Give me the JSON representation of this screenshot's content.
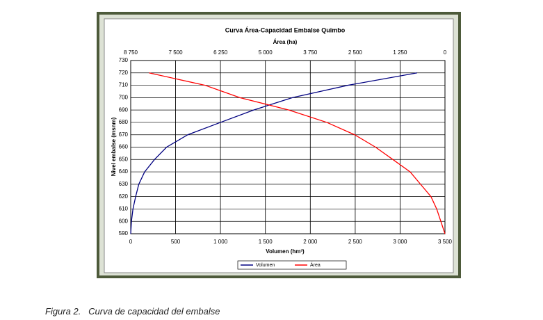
{
  "chart_data": {
    "type": "line",
    "title": "Curva Área-Capacidad Embalse Quimbo",
    "x_label": "Volumen (hm³)",
    "x2_label": "Área (ha)",
    "y_label": "Nivel embalse (msnm)",
    "xlim": [
      0,
      3500
    ],
    "xticks": [
      0,
      500,
      {
        "value": 1000,
        "label": "1 000"
      },
      {
        "value": 1500,
        "label": "1 500"
      },
      {
        "value": 2000,
        "label": "2 000"
      },
      {
        "value": 2500,
        "label": "2 500"
      },
      {
        "value": 3000,
        "label": "3 000"
      },
      {
        "value": 3500,
        "label": "3 500"
      }
    ],
    "x2lim": [
      8750,
      0
    ],
    "x2ticks": [
      {
        "value": 8750,
        "label": "8 750"
      },
      {
        "value": 7500,
        "label": "7 500"
      },
      {
        "value": 6250,
        "label": "6 250"
      },
      {
        "value": 5000,
        "label": "5 000"
      },
      {
        "value": 3750,
        "label": "3 750"
      },
      {
        "value": 2500,
        "label": "2 500"
      },
      {
        "value": 1250,
        "label": "1 250"
      },
      0
    ],
    "ylim": [
      590,
      730
    ],
    "yticks": [
      590,
      600,
      610,
      620,
      630,
      640,
      650,
      660,
      670,
      680,
      690,
      700,
      710,
      720,
      730
    ],
    "grid": true,
    "legend": "bottom",
    "series": [
      {
        "name": "Volumen",
        "color": "#000080",
        "x": [
          0,
          8,
          25,
          55,
          90,
          155,
          265,
          400,
          635,
          1000,
          1370,
          1800,
          2420,
          3190
        ],
        "values": [
          590,
          600,
          610,
          620,
          630,
          640,
          650,
          660,
          670,
          680,
          690,
          700,
          710,
          720
        ]
      },
      {
        "name": "Área",
        "color": "#ff0000",
        "axis": "x2",
        "x": [
          0,
          115,
          230,
          390,
          680,
          970,
          1450,
          1935,
          2515,
          3290,
          4350,
          5710,
          6680,
          8240
        ],
        "values": [
          590,
          600,
          610,
          620,
          630,
          640,
          650,
          660,
          670,
          680,
          690,
          700,
          710,
          720
        ]
      }
    ]
  },
  "caption": "Figura 2.   Curva de capacidad del embalse"
}
